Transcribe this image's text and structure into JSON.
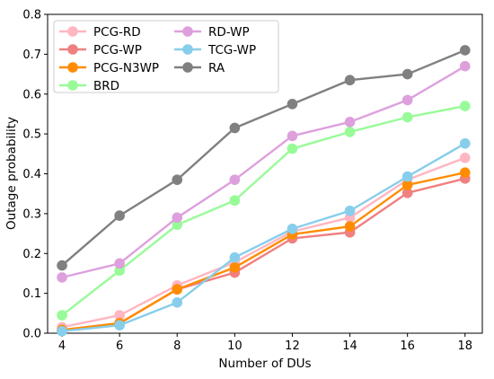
{
  "chart_data": {
    "type": "line",
    "title": "",
    "xlabel": "Number of DUs",
    "ylabel": "Outage probability",
    "x": [
      4,
      6,
      8,
      10,
      12,
      14,
      16,
      18
    ],
    "xlim": [
      3.5,
      18.6
    ],
    "ylim": [
      0,
      0.8
    ],
    "xticks": [
      "4",
      "6",
      "8",
      "10",
      "12",
      "14",
      "16",
      "18"
    ],
    "yticks": [
      "0.0",
      "0.1",
      "0.2",
      "0.3",
      "0.4",
      "0.5",
      "0.6",
      "0.7",
      "0.8"
    ],
    "grid": false,
    "legend_position": "top-left",
    "series": [
      {
        "name": "PCG-RD",
        "color": "#ffb6c1",
        "values": [
          0.015,
          0.045,
          0.12,
          0.178,
          0.255,
          0.29,
          0.385,
          0.44
        ]
      },
      {
        "name": "PCG-WP",
        "color": "#f08080",
        "values": [
          0.008,
          0.025,
          0.11,
          0.152,
          0.238,
          0.253,
          0.352,
          0.388
        ]
      },
      {
        "name": "PCG-N3WP",
        "color": "#ff8c00",
        "values": [
          0.008,
          0.025,
          0.11,
          0.165,
          0.248,
          0.268,
          0.372,
          0.403
        ]
      },
      {
        "name": "BRD",
        "color": "#98fb98",
        "values": [
          0.045,
          0.157,
          0.272,
          0.333,
          0.463,
          0.505,
          0.542,
          0.57
        ]
      },
      {
        "name": "RD-WP",
        "color": "#dda0dd",
        "values": [
          0.14,
          0.175,
          0.29,
          0.385,
          0.495,
          0.53,
          0.585,
          0.67
        ]
      },
      {
        "name": "TCG-WP",
        "color": "#87ceeb",
        "values": [
          0.005,
          0.02,
          0.077,
          0.19,
          0.262,
          0.307,
          0.393,
          0.476
        ]
      },
      {
        "name": "RA",
        "color": "#808080",
        "values": [
          0.17,
          0.295,
          0.385,
          0.515,
          0.575,
          0.635,
          0.65,
          0.71
        ]
      }
    ]
  }
}
